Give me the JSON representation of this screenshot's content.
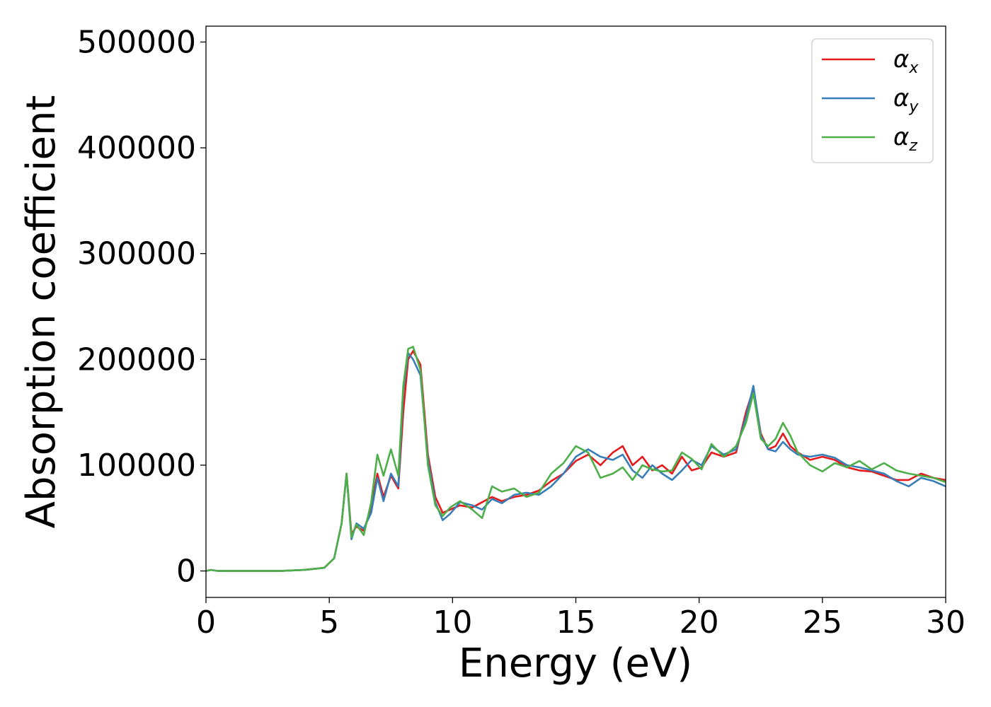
{
  "chart_data": {
    "type": "line",
    "title": "",
    "xlabel": "Energy (eV)",
    "ylabel": "Absorption coefficient",
    "xlim": [
      0,
      30
    ],
    "ylim": [
      -25000,
      515000
    ],
    "xticks": [
      0,
      5,
      10,
      15,
      20,
      25,
      30
    ],
    "yticks": [
      0,
      100000,
      200000,
      300000,
      400000,
      500000
    ],
    "xtick_labels": [
      "0",
      "5",
      "10",
      "15",
      "20",
      "25",
      "30"
    ],
    "ytick_labels": [
      "0",
      "100000",
      "200000",
      "300000",
      "400000",
      "500000"
    ],
    "grid": false,
    "legend_position": "top-right",
    "series": [
      {
        "name": "α",
        "subscript": "x",
        "color": "#e41a1c",
        "x": [
          0,
          0.2,
          0.5,
          1,
          1.5,
          2,
          3,
          4,
          4.8,
          5.2,
          5.5,
          5.7,
          5.9,
          6.1,
          6.4,
          6.7,
          6.95,
          7.2,
          7.5,
          7.8,
          8.0,
          8.2,
          8.4,
          8.7,
          9.0,
          9.3,
          9.6,
          9.9,
          10.3,
          10.8,
          11.2,
          11.6,
          12.0,
          12.5,
          13.0,
          13.5,
          14.0,
          14.5,
          15.0,
          15.5,
          16.0,
          16.5,
          16.9,
          17.3,
          17.7,
          18.1,
          18.5,
          18.9,
          19.3,
          19.7,
          20.1,
          20.5,
          21.0,
          21.5,
          21.9,
          22.2,
          22.5,
          22.8,
          23.1,
          23.4,
          23.7,
          24.0,
          24.5,
          25.0,
          25.5,
          26.0,
          26.5,
          27.0,
          27.5,
          28.0,
          28.5,
          29.0,
          29.5,
          30.0
        ],
        "values": [
          0,
          1000,
          0,
          0,
          0,
          0,
          0,
          1000,
          3000,
          12000,
          45000,
          92000,
          35000,
          42000,
          38000,
          60000,
          92000,
          70000,
          90000,
          78000,
          150000,
          200000,
          208000,
          195000,
          110000,
          70000,
          55000,
          58000,
          62000,
          60000,
          65000,
          70000,
          66000,
          70000,
          72000,
          76000,
          85000,
          92000,
          104000,
          110000,
          100000,
          112000,
          118000,
          100000,
          108000,
          95000,
          100000,
          92000,
          108000,
          95000,
          98000,
          112000,
          108000,
          112000,
          150000,
          172000,
          130000,
          115000,
          118000,
          130000,
          118000,
          112000,
          105000,
          108000,
          105000,
          98000,
          95000,
          94000,
          90000,
          86000,
          86000,
          92000,
          88000,
          86000
        ]
      },
      {
        "name": "α",
        "subscript": "y",
        "color": "#377eb8",
        "x": [
          0,
          0.2,
          0.5,
          1,
          1.5,
          2,
          3,
          4,
          4.8,
          5.2,
          5.5,
          5.7,
          5.9,
          6.1,
          6.4,
          6.7,
          6.95,
          7.2,
          7.5,
          7.8,
          8.0,
          8.2,
          8.4,
          8.7,
          9.0,
          9.3,
          9.6,
          9.9,
          10.3,
          10.8,
          11.2,
          11.6,
          12.0,
          12.5,
          13.0,
          13.5,
          14.0,
          14.5,
          15.0,
          15.5,
          16.0,
          16.5,
          16.9,
          17.3,
          17.7,
          18.1,
          18.5,
          18.9,
          19.3,
          19.7,
          20.1,
          20.5,
          21.0,
          21.5,
          21.9,
          22.2,
          22.5,
          22.8,
          23.1,
          23.4,
          23.7,
          24.0,
          24.5,
          25.0,
          25.5,
          26.0,
          26.5,
          27.0,
          27.5,
          28.0,
          28.5,
          29.0,
          29.5,
          30.0
        ],
        "values": [
          0,
          1000,
          0,
          0,
          0,
          0,
          0,
          1000,
          3000,
          12000,
          45000,
          92000,
          30000,
          45000,
          40000,
          55000,
          88000,
          66000,
          92000,
          80000,
          170000,
          206000,
          200000,
          185000,
          105000,
          65000,
          48000,
          54000,
          65000,
          62000,
          58000,
          68000,
          64000,
          72000,
          74000,
          72000,
          80000,
          92000,
          108000,
          115000,
          108000,
          105000,
          110000,
          95000,
          88000,
          100000,
          92000,
          86000,
          95000,
          105000,
          100000,
          118000,
          110000,
          115000,
          145000,
          175000,
          128000,
          115000,
          113000,
          122000,
          115000,
          110000,
          108000,
          110000,
          107000,
          100000,
          98000,
          95000,
          92000,
          85000,
          80000,
          88000,
          85000,
          80000
        ]
      },
      {
        "name": "α",
        "subscript": "z",
        "color": "#4daf4a",
        "x": [
          0,
          0.2,
          0.5,
          1,
          1.5,
          2,
          3,
          4,
          4.8,
          5.2,
          5.5,
          5.7,
          5.9,
          6.1,
          6.4,
          6.7,
          6.95,
          7.2,
          7.5,
          7.8,
          8.0,
          8.2,
          8.4,
          8.7,
          9.0,
          9.3,
          9.6,
          9.9,
          10.3,
          10.8,
          11.2,
          11.6,
          12.0,
          12.5,
          13.0,
          13.5,
          14.0,
          14.5,
          15.0,
          15.5,
          16.0,
          16.5,
          16.9,
          17.3,
          17.7,
          18.1,
          18.5,
          18.9,
          19.3,
          19.7,
          20.1,
          20.5,
          21.0,
          21.5,
          21.9,
          22.2,
          22.5,
          22.8,
          23.1,
          23.4,
          23.7,
          24.0,
          24.5,
          25.0,
          25.5,
          26.0,
          26.5,
          27.0,
          27.5,
          28.0,
          28.5,
          29.0,
          29.5,
          30.0
        ],
        "values": [
          0,
          1000,
          0,
          0,
          0,
          0,
          0,
          1000,
          3000,
          12000,
          45000,
          92000,
          32000,
          44000,
          34000,
          65000,
          110000,
          90000,
          115000,
          90000,
          175000,
          210000,
          212000,
          190000,
          100000,
          62000,
          52000,
          60000,
          66000,
          58000,
          50000,
          80000,
          75000,
          78000,
          70000,
          74000,
          92000,
          102000,
          118000,
          112000,
          88000,
          92000,
          98000,
          86000,
          100000,
          96000,
          94000,
          95000,
          112000,
          106000,
          96000,
          120000,
          108000,
          118000,
          140000,
          168000,
          125000,
          118000,
          125000,
          140000,
          128000,
          112000,
          100000,
          94000,
          102000,
          98000,
          104000,
          96000,
          102000,
          95000,
          92000,
          90000,
          88000,
          84000
        ]
      }
    ]
  }
}
